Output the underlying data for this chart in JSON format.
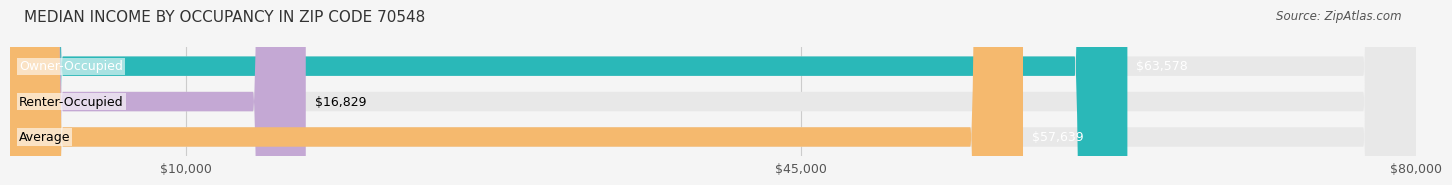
{
  "title": "MEDIAN INCOME BY OCCUPANCY IN ZIP CODE 70548",
  "source": "Source: ZipAtlas.com",
  "categories": [
    "Owner-Occupied",
    "Renter-Occupied",
    "Average"
  ],
  "values": [
    63578,
    16829,
    57639
  ],
  "bar_colors": [
    "#2ab8b8",
    "#c4a8d4",
    "#f5b96e"
  ],
  "bar_labels": [
    "$63,578",
    "$16,829",
    "$57,639"
  ],
  "xlim": [
    0,
    80000
  ],
  "xticks": [
    10000,
    45000,
    80000
  ],
  "xticklabels": [
    "$10,000",
    "$45,000",
    "$80,000"
  ],
  "background_color": "#f5f5f5",
  "bar_bg_color": "#e8e8e8",
  "title_fontsize": 11,
  "source_fontsize": 8.5,
  "label_fontsize": 9,
  "tick_fontsize": 9
}
